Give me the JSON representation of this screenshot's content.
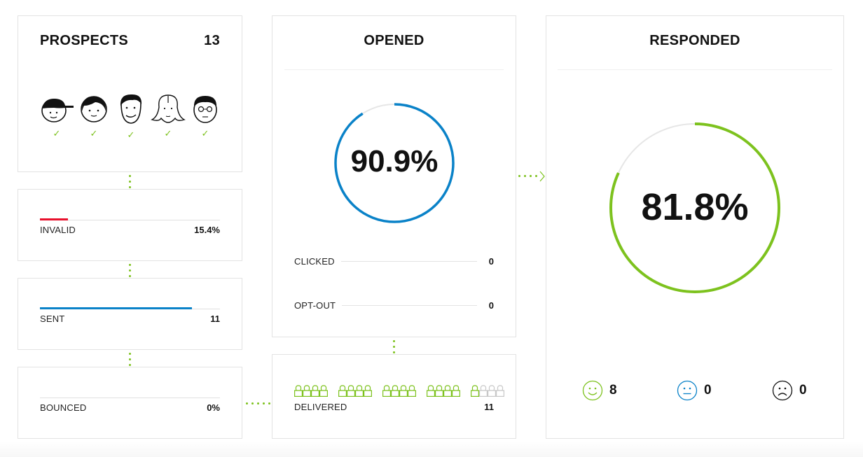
{
  "prospects": {
    "title": "PROSPECTS",
    "count": "13",
    "faces": [
      {
        "name": "boy-cap-avatar",
        "status": "✓"
      },
      {
        "name": "girl-bob-avatar",
        "status": "✓"
      },
      {
        "name": "man-avatar",
        "status": "✓"
      },
      {
        "name": "woman-long-hair-avatar",
        "status": "✓"
      },
      {
        "name": "man-glasses-avatar",
        "status": "✓"
      }
    ]
  },
  "invalid": {
    "label": "INVALID",
    "value": "15.4%",
    "percent": 15.4,
    "color": "#e8112d"
  },
  "sent": {
    "label": "SENT",
    "value": "11",
    "percent": 84.6,
    "color": "#0a82c8"
  },
  "bounced": {
    "label": "BOUNCED",
    "value": "0%",
    "percent": 0
  },
  "opened": {
    "title": "OPENED",
    "percent_text": "90.9%",
    "percent": 90.9,
    "color": "#0a82c8",
    "clicked": {
      "label": "CLICKED",
      "value": "0"
    },
    "opt_out": {
      "label": "OPT-OUT",
      "value": "0"
    }
  },
  "delivered": {
    "label": "DELIVERED",
    "value": "11",
    "filled_icons": 17,
    "total_icons": 20,
    "color": "#7dc21e",
    "empty_color": "#c8c8c8"
  },
  "responded": {
    "title": "RESPONDED",
    "percent_text": "81.8%",
    "percent": 81.8,
    "color": "#7dc21e",
    "moods": [
      {
        "name": "positive",
        "icon": "happy-face-icon",
        "count": "8",
        "color": "#7dc21e"
      },
      {
        "name": "neutral",
        "icon": "neutral-face-icon",
        "count": "0",
        "color": "#0a82c8"
      },
      {
        "name": "negative",
        "icon": "sad-face-icon",
        "count": "0",
        "color": "#111111"
      }
    ]
  },
  "colors": {
    "accent_green": "#7dc21e",
    "accent_blue": "#0a82c8",
    "accent_red": "#e8112d",
    "border": "#e3e3e3"
  }
}
